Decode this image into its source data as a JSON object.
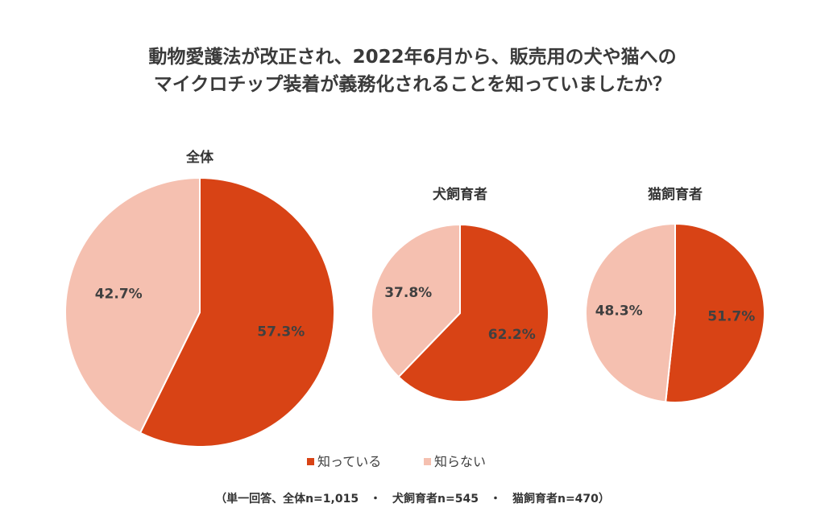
{
  "chart_data": {
    "type": "pie",
    "title": [
      "動物愛護法が改正され、2022年6月から、販売用の犬や猫への",
      "マイクロチップ装着が義務化されることを知っていましたか？"
    ],
    "categories": [
      "知っている",
      "知らない"
    ],
    "colors": [
      "#D84315",
      "#F5C0B0"
    ],
    "pies": [
      {
        "name": "全体",
        "values": [
          57.3,
          42.7
        ],
        "labels": [
          "57.3%",
          "42.7%"
        ]
      },
      {
        "name": "犬飼育者",
        "values": [
          62.2,
          37.8
        ],
        "labels": [
          "62.2%",
          "37.8%"
        ]
      },
      {
        "name": "猫飼育者",
        "values": [
          51.7,
          48.3
        ],
        "labels": [
          "51.7%",
          "48.3%"
        ]
      }
    ],
    "legend": {
      "position": "bottom",
      "items": [
        "知っている",
        "知らない"
      ]
    },
    "note": "（単一回答、全体n=1,015　・　犬飼育者n=545　・　猫飼育者n=470）"
  }
}
